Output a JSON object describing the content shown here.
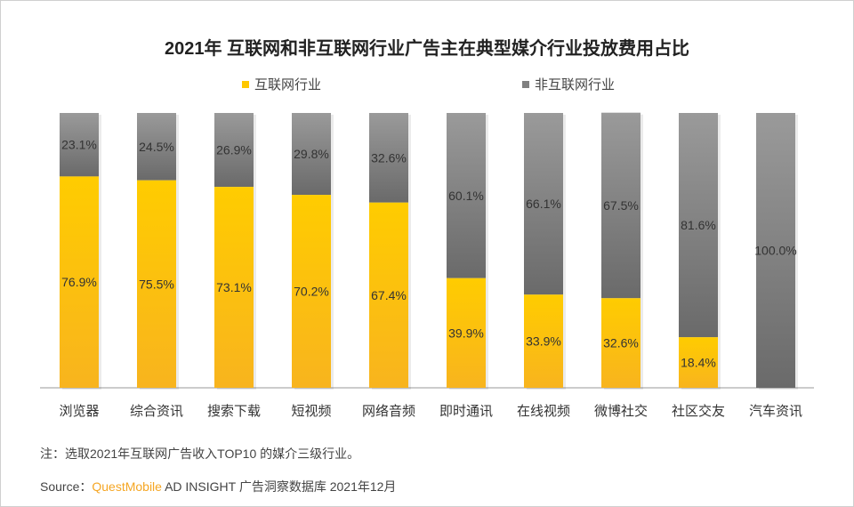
{
  "chart_data": {
    "type": "bar",
    "stacked": true,
    "title": "2021年 互联网和非互联网行业广告主在典型媒介行业投放费用占比",
    "categories": [
      "浏览器",
      "综合资讯",
      "搜索下载",
      "短视频",
      "网络音频",
      "即时通讯",
      "在线视频",
      "微博社交",
      "社区交友",
      "汽车资讯"
    ],
    "series": [
      {
        "name": "互联网行业",
        "values": [
          76.9,
          75.5,
          73.1,
          70.2,
          67.4,
          39.9,
          33.9,
          32.6,
          18.4,
          0
        ],
        "labels": [
          "76.9%",
          "75.5%",
          "73.1%",
          "70.2%",
          "67.4%",
          "39.9%",
          "33.9%",
          "32.6%",
          "18.4%",
          ""
        ],
        "color": "#ffc800"
      },
      {
        "name": "非互联网行业",
        "values": [
          23.1,
          24.5,
          26.9,
          29.8,
          32.6,
          60.1,
          66.1,
          67.5,
          81.6,
          100.0
        ],
        "labels": [
          "23.1%",
          "24.5%",
          "26.9%",
          "29.8%",
          "32.6%",
          "60.1%",
          "66.1%",
          "67.5%",
          "81.6%",
          "100.0%"
        ],
        "color": "#808080"
      }
    ],
    "ylim": [
      0,
      100
    ],
    "legend": "top",
    "grid": false
  },
  "footer": {
    "note": "注：选取2021年互联网广告收入TOP10 的媒介三级行业。",
    "source_label": "Source：",
    "source_brand": "QuestMobile",
    "source_rest": " AD INSIGHT 广告洞察数据库 2021年12月"
  }
}
